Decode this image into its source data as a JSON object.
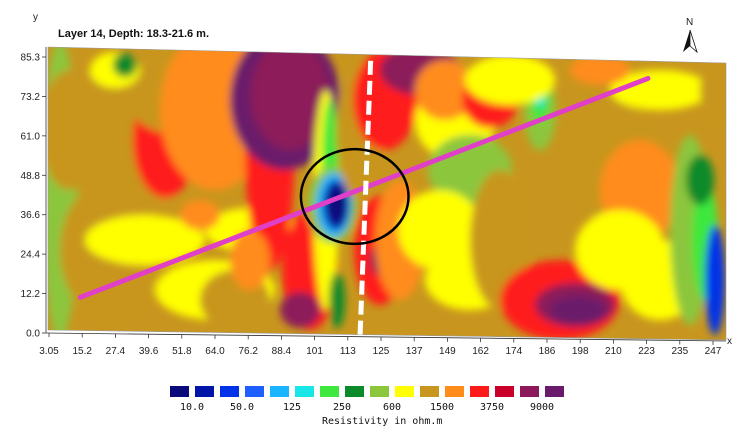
{
  "chart_data": {
    "type": "heatmap",
    "title": "Layer 14, Depth: 18.3-21.6 m.",
    "xlabel": "x",
    "ylabel": "y",
    "north_label": "N",
    "x_ticks": [
      "3.05",
      "15.2",
      "27.4",
      "39.6",
      "51.8",
      "64.0",
      "76.2",
      "88.4",
      "101",
      "113",
      "125",
      "137",
      "149",
      "162",
      "174",
      "186",
      "198",
      "210",
      "223",
      "235",
      "247"
    ],
    "y_ticks": [
      "85.3",
      "73.2",
      "61.0",
      "48.8",
      "36.6",
      "24.4",
      "12.2",
      "0.0"
    ],
    "xlim": [
      0,
      252
    ],
    "ylim": [
      0,
      85.3
    ],
    "legend": {
      "title": "Resistivity in ohm.m",
      "labels": [
        "10.0",
        "50.0",
        "125",
        "250",
        "600",
        "1500",
        "3750",
        "9000"
      ],
      "colors": [
        "#0a0a7a",
        "#0014a8",
        "#0033e8",
        "#1f5fff",
        "#1bb4ff",
        "#19e6e6",
        "#3ee83e",
        "#0a8a2a",
        "#8cc63c",
        "#ffff00",
        "#c8961e",
        "#ff8c1a",
        "#ff1a1a",
        "#c8002a",
        "#8c1a5a",
        "#6a1a6a"
      ]
    },
    "annotations": {
      "profile_line": {
        "color": "#e040c8",
        "points": [
          [
            12,
            10
          ],
          [
            223,
            80
          ]
        ]
      },
      "dashed_line": {
        "color": "#ffffff",
        "points": [
          [
            116,
            0
          ],
          [
            120,
            85
          ]
        ]
      },
      "circle": {
        "color": "#000000",
        "center": [
          114,
          42
        ],
        "radius_x": 20
      }
    }
  }
}
